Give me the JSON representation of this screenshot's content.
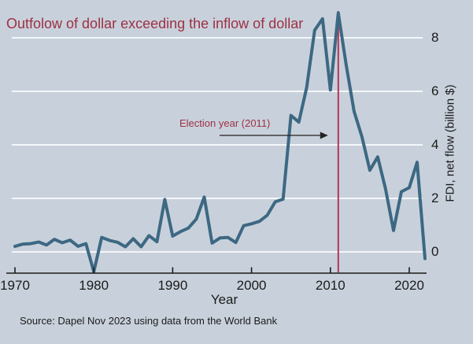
{
  "title": "Outfolow of dollar exceeding the inflow of dollar",
  "source": "Source: Dapel Nov 2023 using data from the World Bank",
  "annotation": {
    "label": "Election year (2011)",
    "event_year": 2011
  },
  "colors": {
    "background": "#c8d1db",
    "data_line": "#3d6883",
    "event_line": "#b53455",
    "accent_text": "#9d3044",
    "gridline": "#f4f7f9",
    "axis": "#1b1b1b"
  },
  "chart_data": {
    "type": "line",
    "title": "Outfolow of dollar exceeding the inflow of dollar",
    "xlabel": "Year",
    "ylabel": "FDI, net flow (billion $)",
    "x_ticks": [
      1970,
      1980,
      1990,
      2000,
      2010,
      2020
    ],
    "y_ticks": [
      0,
      2,
      4,
      6,
      8
    ],
    "xlim": [
      1970,
      2022
    ],
    "ylim": [
      -0.8,
      9.0
    ],
    "grid": "horizontal",
    "legend": "none",
    "event_line": {
      "x": 2011,
      "label": "Election year (2011)"
    },
    "series": [
      {
        "name": "FDI, net flow (billion $)",
        "x": [
          1970,
          1971,
          1972,
          1973,
          1974,
          1975,
          1976,
          1977,
          1978,
          1979,
          1980,
          1981,
          1982,
          1983,
          1984,
          1985,
          1986,
          1987,
          1988,
          1989,
          1990,
          1991,
          1992,
          1993,
          1994,
          1995,
          1996,
          1997,
          1998,
          1999,
          2000,
          2001,
          2002,
          2003,
          2004,
          2005,
          2006,
          2007,
          2008,
          2009,
          2010,
          2011,
          2012,
          2013,
          2014,
          2015,
          2016,
          2017,
          2018,
          2019,
          2020,
          2021,
          2022
        ],
        "values": [
          0.21,
          0.29,
          0.31,
          0.37,
          0.26,
          0.47,
          0.34,
          0.44,
          0.21,
          0.31,
          -0.74,
          0.54,
          0.43,
          0.36,
          0.19,
          0.49,
          0.19,
          0.61,
          0.38,
          1.96,
          0.59,
          0.76,
          0.89,
          1.23,
          2.05,
          0.33,
          0.52,
          0.54,
          0.35,
          0.98,
          1.05,
          1.14,
          1.37,
          1.87,
          1.97,
          5.1,
          4.85,
          6.15,
          8.28,
          8.71,
          6.05,
          8.93,
          7.0,
          5.25,
          4.3,
          3.05,
          3.55,
          2.35,
          0.8,
          2.25,
          2.4,
          3.35,
          -0.25
        ]
      }
    ]
  }
}
